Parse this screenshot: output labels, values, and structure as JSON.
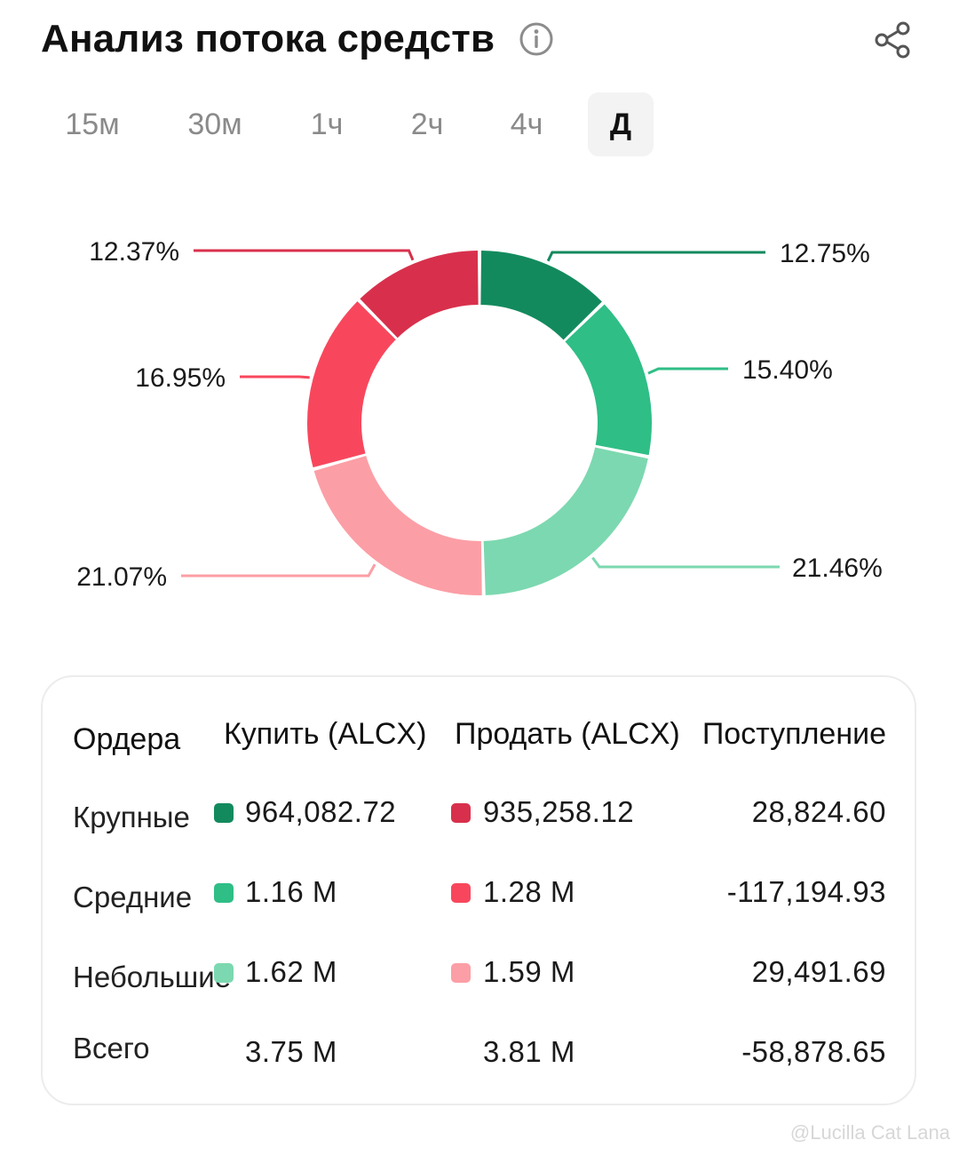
{
  "header": {
    "title": "Анализ потока средств"
  },
  "tabs": [
    {
      "label": "15м",
      "active": false
    },
    {
      "label": "30м",
      "active": false
    },
    {
      "label": "1ч",
      "active": false
    },
    {
      "label": "2ч",
      "active": false
    },
    {
      "label": "4ч",
      "active": false
    },
    {
      "label": "Д",
      "active": true
    }
  ],
  "chart_data": {
    "type": "pie",
    "title": "",
    "slices": [
      {
        "label": "12.75%",
        "value": 12.75,
        "color": "#138a5e"
      },
      {
        "label": "15.40%",
        "value": 15.4,
        "color": "#2fbe86"
      },
      {
        "label": "21.46%",
        "value": 21.46,
        "color": "#7cd8b0"
      },
      {
        "label": "21.07%",
        "value": 21.07,
        "color": "#fc9ea5"
      },
      {
        "label": "16.95%",
        "value": 16.95,
        "color": "#f8475d"
      },
      {
        "label": "12.37%",
        "value": 12.37,
        "color": "#d8304c"
      }
    ]
  },
  "table": {
    "headers": {
      "orders": "Ордера",
      "buy": "Купить (ALCX)",
      "sell": "Продать (ALCX)",
      "inflow": "Поступление"
    },
    "rows": [
      {
        "label": "Крупные",
        "buy": "964,082.72",
        "sell": "935,258.12",
        "inflow": "28,824.60",
        "buy_color": "#138a5e",
        "sell_color": "#d8304c"
      },
      {
        "label": "Средние",
        "buy": "1.16 M",
        "sell": "1.28 M",
        "inflow": "-117,194.93",
        "buy_color": "#2fbe86",
        "sell_color": "#f8475d"
      },
      {
        "label": "Небольшие",
        "buy": "1.62 M",
        "sell": "1.59 M",
        "inflow": "29,491.69",
        "buy_color": "#7cd8b0",
        "sell_color": "#fc9ea5"
      }
    ],
    "total": {
      "label": "Всего",
      "buy": "3.75 M",
      "sell": "3.81 M",
      "inflow": "-58,878.65"
    }
  },
  "watermark": "@Lucilla Cat Lana"
}
